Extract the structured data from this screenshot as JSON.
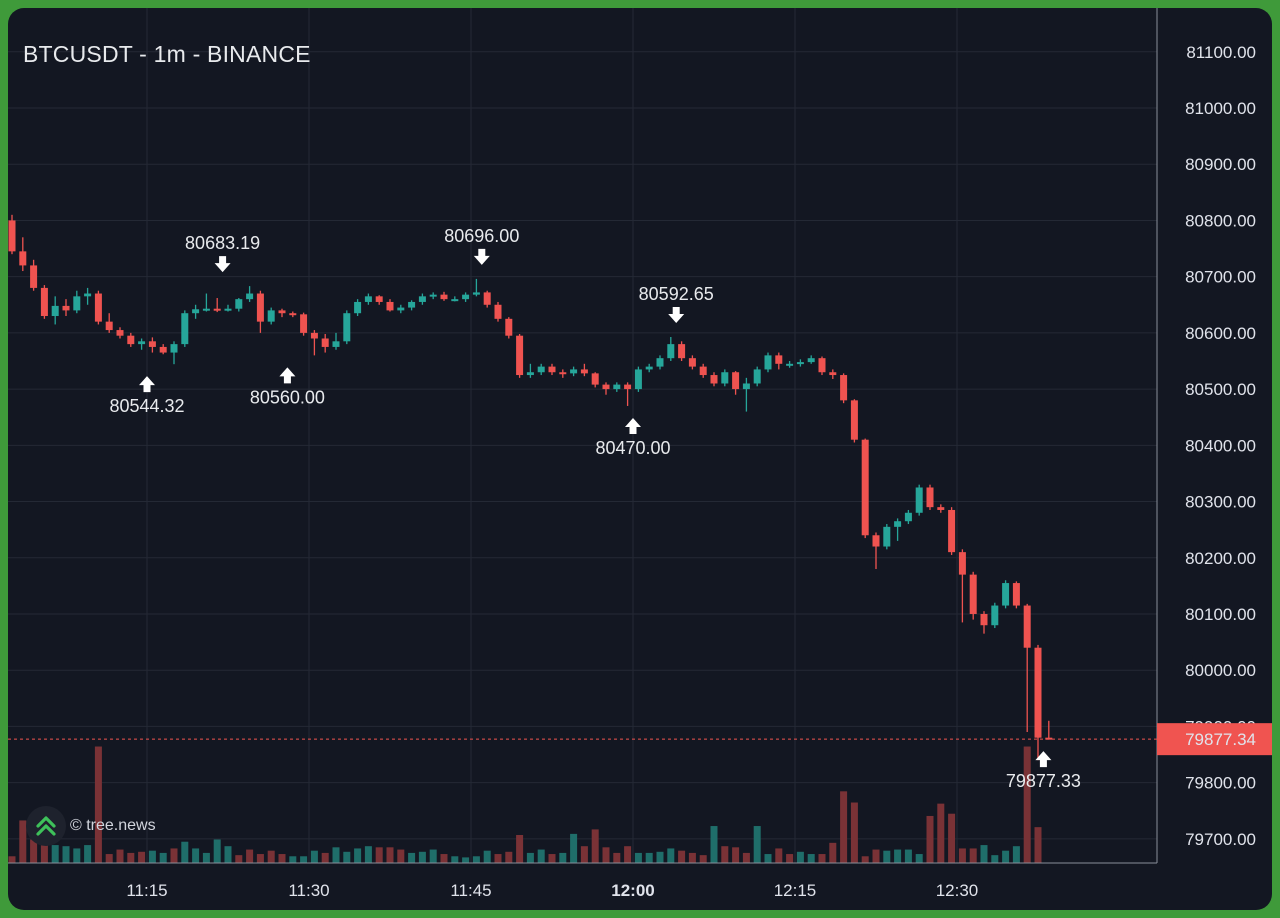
{
  "header": {
    "title": "BTCUSDT - 1m - BINANCE"
  },
  "watermark": {
    "text": "© tree.news",
    "icon": "double-chevron-up-icon"
  },
  "colors": {
    "up": "#26a69a",
    "down": "#ef5350",
    "up_volume": "#1f6e6a",
    "down_volume": "#7a3236",
    "background": "#131722",
    "grid": "#242935",
    "last_price_bg": "#f05450",
    "frame": "#3f9a3a"
  },
  "chart_data": {
    "type": "candlestick",
    "symbol": "BTCUSDT",
    "interval": "1m",
    "exchange": "BINANCE",
    "y_ticks": [
      81100,
      81000,
      80900,
      80800,
      80700,
      80600,
      80500,
      80400,
      80300,
      80200,
      80100,
      80000,
      79900,
      79800,
      79700
    ],
    "y_tick_labels": [
      "81100.00",
      "81000.00",
      "80900.00",
      "80800.00",
      "80700.00",
      "80600.00",
      "80500.00",
      "80400.00",
      "80300.00",
      "80200.00",
      "80100.00",
      "80000.00",
      "79900.00",
      "79800.00",
      "79700.00"
    ],
    "x_ticks": [
      {
        "label": "11:15",
        "bold": false
      },
      {
        "label": "11:30",
        "bold": false
      },
      {
        "label": "11:45",
        "bold": false
      },
      {
        "label": "12:00",
        "bold": true
      },
      {
        "label": "12:15",
        "bold": false
      },
      {
        "label": "12:30",
        "bold": false
      }
    ],
    "last_price": {
      "value": 79877.34,
      "label": "79877.34"
    },
    "annotations": [
      {
        "label": "80683.19",
        "type": "high"
      },
      {
        "label": "80544.32",
        "type": "low"
      },
      {
        "label": "80560.00",
        "type": "low"
      },
      {
        "label": "80696.00",
        "type": "high"
      },
      {
        "label": "80592.65",
        "type": "high"
      },
      {
        "label": "80470.00",
        "type": "low"
      },
      {
        "label": "79877.33",
        "type": "low"
      }
    ],
    "candles": [
      [
        80800,
        80745,
        80810,
        80740
      ],
      [
        80745,
        80720,
        80770,
        80710
      ],
      [
        80720,
        80680,
        80730,
        80675
      ],
      [
        80680,
        80630,
        80685,
        80625
      ],
      [
        80630,
        80648,
        80665,
        80615
      ],
      [
        80648,
        80640,
        80660,
        80630
      ],
      [
        80640,
        80665,
        80675,
        80635
      ],
      [
        80665,
        80670,
        80680,
        80650
      ],
      [
        80670,
        80620,
        80675,
        80615
      ],
      [
        80620,
        80605,
        80635,
        80600
      ],
      [
        80605,
        80595,
        80610,
        80590
      ],
      [
        80595,
        80580,
        80600,
        80575
      ],
      [
        80580,
        80585,
        80590,
        80570
      ],
      [
        80585,
        80575,
        80592,
        80565
      ],
      [
        80575,
        80565,
        80580,
        80562
      ],
      [
        80565,
        80580,
        80585,
        80544.32
      ],
      [
        80580,
        80635,
        80640,
        80575
      ],
      [
        80635,
        80642,
        80650,
        80625
      ],
      [
        80642,
        80643,
        80670,
        80638
      ],
      [
        80643,
        80640,
        80662,
        80637
      ],
      [
        80640,
        80643,
        80650,
        80638
      ],
      [
        80643,
        80660,
        80662,
        80638
      ],
      [
        80660,
        80670,
        80683.19,
        80655
      ],
      [
        80670,
        80620,
        80675,
        80600
      ],
      [
        80620,
        80640,
        80645,
        80615
      ],
      [
        80640,
        80635,
        80643,
        80628
      ],
      [
        80635,
        80633,
        80638,
        80628
      ],
      [
        80633,
        80600,
        80636,
        80595
      ],
      [
        80600,
        80590,
        80605,
        80560
      ],
      [
        80590,
        80575,
        80598,
        80565
      ],
      [
        80575,
        80585,
        80600,
        80570
      ],
      [
        80585,
        80635,
        80640,
        80580
      ],
      [
        80635,
        80655,
        80660,
        80630
      ],
      [
        80655,
        80665,
        80670,
        80650
      ],
      [
        80665,
        80655,
        80667,
        80650
      ],
      [
        80655,
        80640,
        80660,
        80638
      ],
      [
        80640,
        80645,
        80650,
        80635
      ],
      [
        80645,
        80655,
        80658,
        80640
      ],
      [
        80655,
        80665,
        80670,
        80650
      ],
      [
        80665,
        80668,
        80672,
        80660
      ],
      [
        80668,
        80660,
        80673,
        80657
      ],
      [
        80660,
        80660,
        80665,
        80656
      ],
      [
        80660,
        80668,
        80672,
        80655
      ],
      [
        80668,
        80672,
        80696,
        80665
      ],
      [
        80672,
        80650,
        80675,
        80645
      ],
      [
        80650,
        80625,
        80655,
        80620
      ],
      [
        80625,
        80595,
        80628,
        80590
      ],
      [
        80595,
        80525,
        80598,
        80520
      ],
      [
        80525,
        80530,
        80545,
        80520
      ],
      [
        80530,
        80540,
        80545,
        80525
      ],
      [
        80540,
        80530,
        80545,
        80525
      ],
      [
        80530,
        80528,
        80535,
        80520
      ],
      [
        80528,
        80535,
        80540,
        80523
      ],
      [
        80535,
        80528,
        80545,
        80523
      ],
      [
        80528,
        80508,
        80530,
        80503
      ],
      [
        80508,
        80500,
        80512,
        80490
      ],
      [
        80500,
        80508,
        80512,
        80495
      ],
      [
        80508,
        80500,
        80512,
        80470
      ],
      [
        80500,
        80535,
        80540,
        80495
      ],
      [
        80535,
        80540,
        80545,
        80530
      ],
      [
        80540,
        80555,
        80560,
        80535
      ],
      [
        80555,
        80580,
        80592.65,
        80550
      ],
      [
        80580,
        80555,
        80585,
        80550
      ],
      [
        80555,
        80540,
        80560,
        80535
      ],
      [
        80540,
        80525,
        80545,
        80520
      ],
      [
        80525,
        80510,
        80530,
        80505
      ],
      [
        80510,
        80530,
        80535,
        80505
      ],
      [
        80530,
        80500,
        80532,
        80490
      ],
      [
        80500,
        80510,
        80520,
        80460
      ],
      [
        80510,
        80535,
        80540,
        80505
      ],
      [
        80535,
        80560,
        80565,
        80530
      ],
      [
        80560,
        80545,
        80565,
        80535
      ],
      [
        80545,
        80545,
        80550,
        80538
      ],
      [
        80545,
        80548,
        80553,
        80540
      ],
      [
        80548,
        80555,
        80560,
        80545
      ],
      [
        80555,
        80530,
        80558,
        80525
      ],
      [
        80530,
        80525,
        80535,
        80518
      ],
      [
        80525,
        80480,
        80528,
        80475
      ],
      [
        80480,
        80410,
        80482,
        80405
      ],
      [
        80410,
        80240,
        80412,
        80235
      ],
      [
        80240,
        80220,
        80245,
        80180
      ],
      [
        80220,
        80255,
        80260,
        80215
      ],
      [
        80255,
        80265,
        80270,
        80230
      ],
      [
        80265,
        80280,
        80285,
        80260
      ],
      [
        80280,
        80325,
        80330,
        80275
      ],
      [
        80325,
        80290,
        80330,
        80285
      ],
      [
        80290,
        80285,
        80295,
        80280
      ],
      [
        80285,
        80210,
        80290,
        80205
      ],
      [
        80210,
        80170,
        80215,
        80085
      ],
      [
        80170,
        80100,
        80175,
        80090
      ],
      [
        80100,
        80080,
        80105,
        80065
      ],
      [
        80080,
        80115,
        80120,
        80075
      ],
      [
        80115,
        80155,
        80160,
        80110
      ],
      [
        80155,
        80115,
        80158,
        80110
      ],
      [
        80115,
        80040,
        80118,
        79890
      ],
      [
        80040,
        79880,
        80045,
        79840
      ],
      [
        79880,
        79877.34,
        79910,
        79877.33
      ]
    ],
    "volumes": [
      [
        6,
        "down"
      ],
      [
        38,
        "down"
      ],
      [
        21,
        "down"
      ],
      [
        19,
        "down"
      ],
      [
        16,
        "up"
      ],
      [
        15,
        "up"
      ],
      [
        13,
        "up"
      ],
      [
        16,
        "up"
      ],
      [
        104,
        "down"
      ],
      [
        8,
        "down"
      ],
      [
        12,
        "down"
      ],
      [
        9,
        "down"
      ],
      [
        10,
        "down"
      ],
      [
        11,
        "up"
      ],
      [
        9,
        "up"
      ],
      [
        13,
        "down"
      ],
      [
        19,
        "up"
      ],
      [
        13,
        "up"
      ],
      [
        9,
        "up"
      ],
      [
        21,
        "up"
      ],
      [
        15,
        "up"
      ],
      [
        7,
        "down"
      ],
      [
        12,
        "down"
      ],
      [
        8,
        "down"
      ],
      [
        11,
        "down"
      ],
      [
        8,
        "down"
      ],
      [
        6,
        "up"
      ],
      [
        6,
        "up"
      ],
      [
        11,
        "up"
      ],
      [
        9,
        "down"
      ],
      [
        14,
        "up"
      ],
      [
        10,
        "up"
      ],
      [
        13,
        "up"
      ],
      [
        15,
        "up"
      ],
      [
        14,
        "down"
      ],
      [
        14,
        "down"
      ],
      [
        12,
        "down"
      ],
      [
        9,
        "up"
      ],
      [
        10,
        "up"
      ],
      [
        12,
        "up"
      ],
      [
        8,
        "down"
      ],
      [
        6,
        "up"
      ],
      [
        5,
        "up"
      ],
      [
        6,
        "up"
      ],
      [
        11,
        "up"
      ],
      [
        8,
        "down"
      ],
      [
        10,
        "down"
      ],
      [
        25,
        "down"
      ],
      [
        9,
        "up"
      ],
      [
        12,
        "up"
      ],
      [
        8,
        "down"
      ],
      [
        9,
        "up"
      ],
      [
        26,
        "up"
      ],
      [
        15,
        "down"
      ],
      [
        30,
        "down"
      ],
      [
        14,
        "down"
      ],
      [
        9,
        "down"
      ],
      [
        15,
        "down"
      ],
      [
        9,
        "up"
      ],
      [
        9,
        "up"
      ],
      [
        10,
        "up"
      ],
      [
        13,
        "up"
      ],
      [
        11,
        "down"
      ],
      [
        9,
        "down"
      ],
      [
        7,
        "down"
      ],
      [
        33,
        "up"
      ],
      [
        15,
        "down"
      ],
      [
        14,
        "down"
      ],
      [
        9,
        "down"
      ],
      [
        33,
        "up"
      ],
      [
        8,
        "up"
      ],
      [
        13,
        "down"
      ],
      [
        8,
        "down"
      ],
      [
        10,
        "up"
      ],
      [
        8,
        "up"
      ],
      [
        8,
        "down"
      ],
      [
        18,
        "down"
      ],
      [
        64,
        "down"
      ],
      [
        54,
        "down"
      ],
      [
        6,
        "down"
      ],
      [
        12,
        "down"
      ],
      [
        11,
        "up"
      ],
      [
        12,
        "up"
      ],
      [
        12,
        "up"
      ],
      [
        8,
        "up"
      ],
      [
        42,
        "down"
      ],
      [
        53,
        "down"
      ],
      [
        44,
        "down"
      ],
      [
        13,
        "down"
      ],
      [
        13,
        "down"
      ],
      [
        16,
        "up"
      ],
      [
        7,
        "up"
      ],
      [
        11,
        "up"
      ],
      [
        15,
        "up"
      ],
      [
        104,
        "down"
      ],
      [
        32,
        "down"
      ],
      [
        0,
        "down"
      ]
    ]
  }
}
